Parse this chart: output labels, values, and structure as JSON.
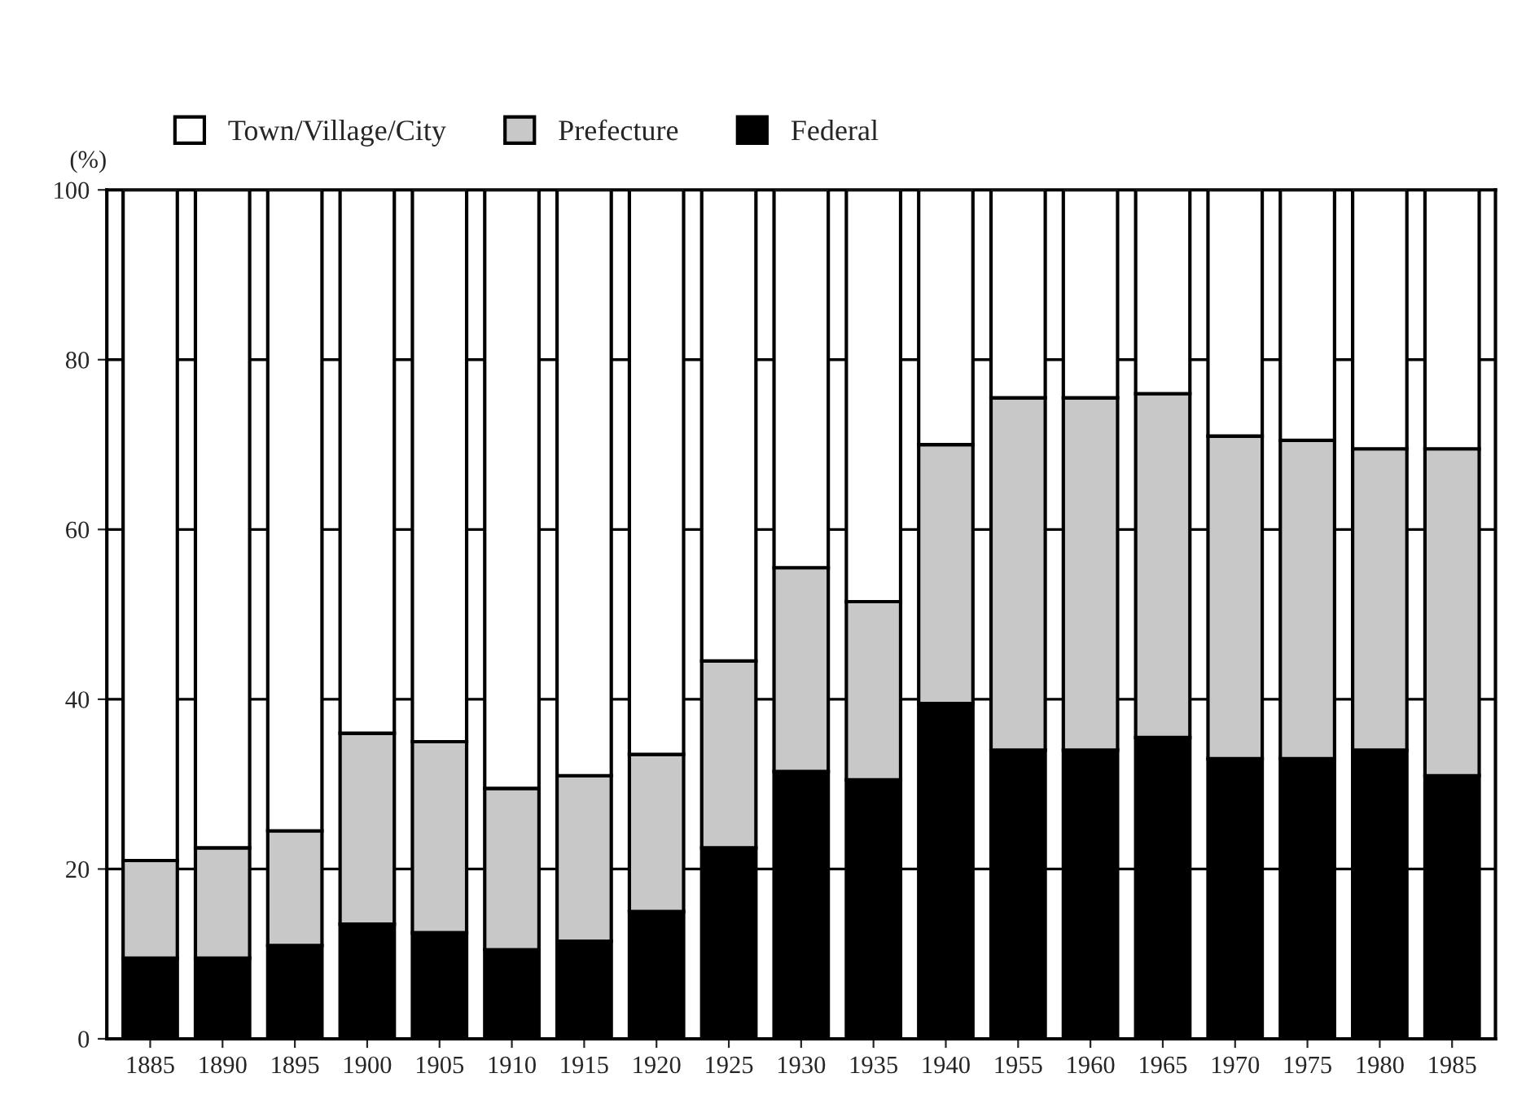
{
  "chart_data": {
    "type": "bar",
    "stacked": true,
    "ylabel": "(%)",
    "categories": [
      "1885",
      "1890",
      "1895",
      "1900",
      "1905",
      "1910",
      "1915",
      "1920",
      "1925",
      "1930",
      "1935",
      "1940",
      "1955",
      "1960",
      "1965",
      "1970",
      "1975",
      "1980",
      "1985"
    ],
    "series": [
      {
        "name": "Federal",
        "color": "#000000",
        "values": [
          9.5,
          9.5,
          11,
          13.5,
          12.5,
          10.5,
          11.5,
          15,
          22.5,
          31.5,
          30.5,
          39.5,
          34,
          34,
          35.5,
          33,
          33,
          34,
          31
        ]
      },
      {
        "name": "Prefecture",
        "color": "#c8c8c8",
        "values": [
          11.5,
          13,
          13.5,
          22.5,
          22.5,
          19,
          19.5,
          18.5,
          22,
          24,
          21,
          30.5,
          41.5,
          41.5,
          40.5,
          38,
          37.5,
          35.5,
          38.5
        ]
      },
      {
        "name": "Town/Village/City",
        "color": "#ffffff",
        "values": [
          79,
          77.5,
          75.5,
          64,
          65,
          70.5,
          69,
          66.5,
          55.5,
          44.5,
          48.5,
          30,
          24.5,
          24.5,
          24,
          29,
          29.5,
          30.5,
          30.5
        ]
      }
    ],
    "ylim": [
      0,
      100
    ],
    "yticks": [
      0,
      20,
      40,
      60,
      80,
      100
    ],
    "grid": "y",
    "legend": "top left"
  }
}
